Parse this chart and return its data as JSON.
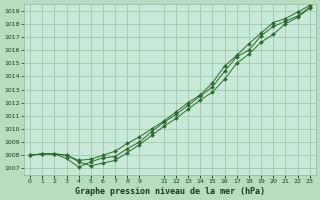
{
  "title": "Graphe pression niveau de la mer (hPa)",
  "bg_color": "#b8dcc0",
  "plot_bg_color": "#c8e8d8",
  "line_color": "#2d6a2d",
  "grid_color": "#90b898",
  "text_color": "#1a3a1a",
  "ylim": [
    1006.5,
    1019.5
  ],
  "xlim": [
    -0.5,
    23.5
  ],
  "yticks": [
    1007,
    1008,
    1009,
    1010,
    1011,
    1012,
    1013,
    1014,
    1015,
    1016,
    1017,
    1018,
    1019
  ],
  "xtick_positions": [
    0,
    1,
    2,
    3,
    4,
    5,
    6,
    7,
    8,
    9,
    11,
    12,
    13,
    14,
    15,
    16,
    17,
    18,
    19,
    20,
    21,
    22,
    23
  ],
  "xtick_labels": [
    "0",
    "1",
    "2",
    "3",
    "4",
    "5",
    "6",
    "7",
    "8",
    "9",
    "11",
    "12",
    "13",
    "14",
    "15",
    "16",
    "17",
    "18",
    "19",
    "20",
    "21",
    "22",
    "23"
  ],
  "series": [
    [
      1008.0,
      1008.1,
      1008.1,
      1008.0,
      1007.5,
      1007.2,
      1007.4,
      1007.6,
      1008.2,
      1008.8,
      1009.5,
      1010.2,
      1010.8,
      1011.5,
      1012.2,
      1012.8,
      1013.8,
      1015.0,
      1015.7,
      1016.6,
      1017.2,
      1018.0,
      1018.5,
      1019.2
    ],
    [
      1008.0,
      1008.1,
      1008.1,
      1007.75,
      1007.1,
      1007.5,
      1007.8,
      1007.9,
      1008.5,
      1009.0,
      1009.8,
      1010.5,
      1011.1,
      1011.8,
      1012.5,
      1013.2,
      1014.4,
      1015.5,
      1016.0,
      1017.1,
      1017.8,
      1018.2,
      1018.6,
      1019.25
    ],
    [
      1008.0,
      1008.1,
      1008.1,
      1008.0,
      1007.6,
      1007.7,
      1008.0,
      1008.3,
      1008.9,
      1009.4,
      1010.0,
      1010.6,
      1011.3,
      1012.0,
      1012.6,
      1013.5,
      1014.8,
      1015.6,
      1016.5,
      1017.3,
      1018.1,
      1018.4,
      1018.9,
      1019.4
    ]
  ]
}
